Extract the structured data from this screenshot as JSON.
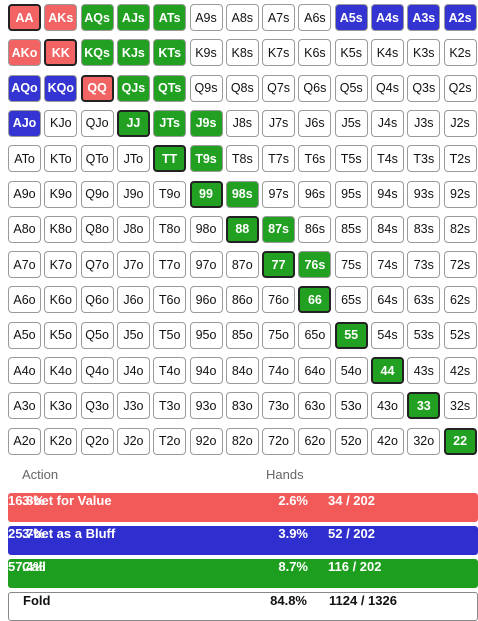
{
  "grid": {
    "rows": [
      [
        [
          "AA",
          "#f26464"
        ],
        [
          "AKs",
          "#f26464"
        ],
        [
          "AQs",
          "#22a022"
        ],
        [
          "AJs",
          "#22a022"
        ],
        [
          "ATs",
          "#22a022"
        ],
        [
          "A9s",
          "#ffffff"
        ],
        [
          "A8s",
          "#ffffff"
        ],
        [
          "A7s",
          "#ffffff"
        ],
        [
          "A6s",
          "#ffffff"
        ],
        [
          "A5s",
          "#3434d2"
        ],
        [
          "A4s",
          "#3434d2"
        ],
        [
          "A3s",
          "#3434d2"
        ],
        [
          "A2s",
          "#3434d2"
        ]
      ],
      [
        [
          "AKo",
          "#f26464"
        ],
        [
          "KK",
          "#f26464"
        ],
        [
          "KQs",
          "#22a022"
        ],
        [
          "KJs",
          "#22a022"
        ],
        [
          "KTs",
          "#22a022"
        ],
        [
          "K9s",
          "#ffffff"
        ],
        [
          "K8s",
          "#ffffff"
        ],
        [
          "K7s",
          "#ffffff"
        ],
        [
          "K6s",
          "#ffffff"
        ],
        [
          "K5s",
          "#ffffff"
        ],
        [
          "K4s",
          "#ffffff"
        ],
        [
          "K3s",
          "#ffffff"
        ],
        [
          "K2s",
          "#ffffff"
        ]
      ],
      [
        [
          "AQo",
          "#3434d2"
        ],
        [
          "KQo",
          "#3434d2"
        ],
        [
          "QQ",
          "#f26464"
        ],
        [
          "QJs",
          "#22a022"
        ],
        [
          "QTs",
          "#22a022"
        ],
        [
          "Q9s",
          "#ffffff"
        ],
        [
          "Q8s",
          "#ffffff"
        ],
        [
          "Q7s",
          "#ffffff"
        ],
        [
          "Q6s",
          "#ffffff"
        ],
        [
          "Q5s",
          "#ffffff"
        ],
        [
          "Q4s",
          "#ffffff"
        ],
        [
          "Q3s",
          "#ffffff"
        ],
        [
          "Q2s",
          "#ffffff"
        ]
      ],
      [
        [
          "AJo",
          "#3434d2"
        ],
        [
          "KJo",
          "#ffffff"
        ],
        [
          "QJo",
          "#ffffff"
        ],
        [
          "JJ",
          "#22a022"
        ],
        [
          "JTs",
          "#22a022"
        ],
        [
          "J9s",
          "#22a022"
        ],
        [
          "J8s",
          "#ffffff"
        ],
        [
          "J7s",
          "#ffffff"
        ],
        [
          "J6s",
          "#ffffff"
        ],
        [
          "J5s",
          "#ffffff"
        ],
        [
          "J4s",
          "#ffffff"
        ],
        [
          "J3s",
          "#ffffff"
        ],
        [
          "J2s",
          "#ffffff"
        ]
      ],
      [
        [
          "ATo",
          "#ffffff"
        ],
        [
          "KTo",
          "#ffffff"
        ],
        [
          "QTo",
          "#ffffff"
        ],
        [
          "JTo",
          "#ffffff"
        ],
        [
          "TT",
          "#22a022"
        ],
        [
          "T9s",
          "#22a022"
        ],
        [
          "T8s",
          "#ffffff"
        ],
        [
          "T7s",
          "#ffffff"
        ],
        [
          "T6s",
          "#ffffff"
        ],
        [
          "T5s",
          "#ffffff"
        ],
        [
          "T4s",
          "#ffffff"
        ],
        [
          "T3s",
          "#ffffff"
        ],
        [
          "T2s",
          "#ffffff"
        ]
      ],
      [
        [
          "A9o",
          "#ffffff"
        ],
        [
          "K9o",
          "#ffffff"
        ],
        [
          "Q9o",
          "#ffffff"
        ],
        [
          "J9o",
          "#ffffff"
        ],
        [
          "T9o",
          "#ffffff"
        ],
        [
          "99",
          "#22a022"
        ],
        [
          "98s",
          "#22a022"
        ],
        [
          "97s",
          "#ffffff"
        ],
        [
          "96s",
          "#ffffff"
        ],
        [
          "95s",
          "#ffffff"
        ],
        [
          "94s",
          "#ffffff"
        ],
        [
          "93s",
          "#ffffff"
        ],
        [
          "92s",
          "#ffffff"
        ]
      ],
      [
        [
          "A8o",
          "#ffffff"
        ],
        [
          "K8o",
          "#ffffff"
        ],
        [
          "Q8o",
          "#ffffff"
        ],
        [
          "J8o",
          "#ffffff"
        ],
        [
          "T8o",
          "#ffffff"
        ],
        [
          "98o",
          "#ffffff"
        ],
        [
          "88",
          "#22a022"
        ],
        [
          "87s",
          "#22a022"
        ],
        [
          "86s",
          "#ffffff"
        ],
        [
          "85s",
          "#ffffff"
        ],
        [
          "84s",
          "#ffffff"
        ],
        [
          "83s",
          "#ffffff"
        ],
        [
          "82s",
          "#ffffff"
        ]
      ],
      [
        [
          "A7o",
          "#ffffff"
        ],
        [
          "K7o",
          "#ffffff"
        ],
        [
          "Q7o",
          "#ffffff"
        ],
        [
          "J7o",
          "#ffffff"
        ],
        [
          "T7o",
          "#ffffff"
        ],
        [
          "97o",
          "#ffffff"
        ],
        [
          "87o",
          "#ffffff"
        ],
        [
          "77",
          "#22a022"
        ],
        [
          "76s",
          "#22a022"
        ],
        [
          "75s",
          "#ffffff"
        ],
        [
          "74s",
          "#ffffff"
        ],
        [
          "73s",
          "#ffffff"
        ],
        [
          "72s",
          "#ffffff"
        ]
      ],
      [
        [
          "A6o",
          "#ffffff"
        ],
        [
          "K6o",
          "#ffffff"
        ],
        [
          "Q6o",
          "#ffffff"
        ],
        [
          "J6o",
          "#ffffff"
        ],
        [
          "T6o",
          "#ffffff"
        ],
        [
          "96o",
          "#ffffff"
        ],
        [
          "86o",
          "#ffffff"
        ],
        [
          "76o",
          "#ffffff"
        ],
        [
          "66",
          "#22a022"
        ],
        [
          "65s",
          "#ffffff"
        ],
        [
          "64s",
          "#ffffff"
        ],
        [
          "63s",
          "#ffffff"
        ],
        [
          "62s",
          "#ffffff"
        ]
      ],
      [
        [
          "A5o",
          "#ffffff"
        ],
        [
          "K5o",
          "#ffffff"
        ],
        [
          "Q5o",
          "#ffffff"
        ],
        [
          "J5o",
          "#ffffff"
        ],
        [
          "T5o",
          "#ffffff"
        ],
        [
          "95o",
          "#ffffff"
        ],
        [
          "85o",
          "#ffffff"
        ],
        [
          "75o",
          "#ffffff"
        ],
        [
          "65o",
          "#ffffff"
        ],
        [
          "55",
          "#22a022"
        ],
        [
          "54s",
          "#ffffff"
        ],
        [
          "53s",
          "#ffffff"
        ],
        [
          "52s",
          "#ffffff"
        ]
      ],
      [
        [
          "A4o",
          "#ffffff"
        ],
        [
          "K4o",
          "#ffffff"
        ],
        [
          "Q4o",
          "#ffffff"
        ],
        [
          "J4o",
          "#ffffff"
        ],
        [
          "T4o",
          "#ffffff"
        ],
        [
          "94o",
          "#ffffff"
        ],
        [
          "84o",
          "#ffffff"
        ],
        [
          "74o",
          "#ffffff"
        ],
        [
          "64o",
          "#ffffff"
        ],
        [
          "54o",
          "#ffffff"
        ],
        [
          "44",
          "#22a022"
        ],
        [
          "43s",
          "#ffffff"
        ],
        [
          "42s",
          "#ffffff"
        ]
      ],
      [
        [
          "A3o",
          "#ffffff"
        ],
        [
          "K3o",
          "#ffffff"
        ],
        [
          "Q3o",
          "#ffffff"
        ],
        [
          "J3o",
          "#ffffff"
        ],
        [
          "T3o",
          "#ffffff"
        ],
        [
          "93o",
          "#ffffff"
        ],
        [
          "83o",
          "#ffffff"
        ],
        [
          "73o",
          "#ffffff"
        ],
        [
          "63o",
          "#ffffff"
        ],
        [
          "53o",
          "#ffffff"
        ],
        [
          "43o",
          "#ffffff"
        ],
        [
          "33",
          "#22a022"
        ],
        [
          "32s",
          "#ffffff"
        ]
      ],
      [
        [
          "A2o",
          "#ffffff"
        ],
        [
          "K2o",
          "#ffffff"
        ],
        [
          "Q2o",
          "#ffffff"
        ],
        [
          "J2o",
          "#ffffff"
        ],
        [
          "T2o",
          "#ffffff"
        ],
        [
          "92o",
          "#ffffff"
        ],
        [
          "82o",
          "#ffffff"
        ],
        [
          "72o",
          "#ffffff"
        ],
        [
          "62o",
          "#ffffff"
        ],
        [
          "52o",
          "#ffffff"
        ],
        [
          "42o",
          "#ffffff"
        ],
        [
          "32o",
          "#ffffff"
        ],
        [
          "22",
          "#22a022"
        ]
      ]
    ]
  },
  "summary": {
    "headers": [
      "Action",
      "Hands"
    ],
    "rows": [
      {
        "action": "3-bet for Value",
        "percent": "2.6%",
        "combos": "34 / 202",
        "share": "16.8%",
        "color": "#f25a5a"
      },
      {
        "action": "3-bet as a Bluff",
        "percent": "3.9%",
        "combos": "52 / 202",
        "share": "25.7%",
        "color": "#2f2fd0"
      },
      {
        "action": "Call",
        "percent": "8.7%",
        "combos": "116 / 202",
        "share": "57.4%",
        "color": "#1e9e1e"
      },
      {
        "action": "Fold",
        "percent": "84.8%",
        "combos": "1124 / 1326",
        "color": "#ffffff"
      }
    ]
  }
}
